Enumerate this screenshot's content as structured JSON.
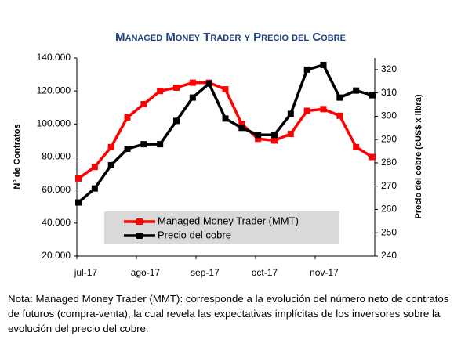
{
  "chart_data": {
    "type": "line",
    "title": "Managed Money Trader y Precio del Cobre",
    "ylabel": "N° de Contratos",
    "y2label": "Precio del cobre (cUS$ x libra)",
    "x_labels": [
      "jul-17",
      "ago-17",
      "sep-17",
      "oct-17",
      "nov-17"
    ],
    "series": [
      {
        "name": "Managed Money Trader (MMT)",
        "color": "#ff0000",
        "axis": "y",
        "values": [
          67000,
          74000,
          86000,
          104000,
          112000,
          120000,
          122000,
          125000,
          125000,
          121000,
          100000,
          91000,
          90000,
          94000,
          108000,
          109000,
          105000,
          86000,
          80000
        ]
      },
      {
        "name": "Precio del cobre",
        "color": "#000000",
        "axis": "y2",
        "values": [
          263,
          269,
          279,
          286,
          288,
          288,
          298,
          308,
          314,
          299,
          295,
          292,
          292,
          301,
          320,
          322,
          308,
          311,
          309
        ]
      }
    ],
    "ylim": [
      20000,
      140000
    ],
    "yticks": [
      {
        "value": 20000,
        "label": "20.000"
      },
      {
        "value": 40000,
        "label": "40.000"
      },
      {
        "value": 60000,
        "label": "60.000"
      },
      {
        "value": 80000,
        "label": "80.000"
      },
      {
        "value": 100000,
        "label": "100.000"
      },
      {
        "value": 120000,
        "label": "120.000"
      },
      {
        "value": 140000,
        "label": "140.000"
      }
    ],
    "y2lim": [
      240,
      325
    ],
    "y2ticks": [
      240,
      250,
      260,
      270,
      280,
      290,
      300,
      310,
      320
    ],
    "note": "Nota: Managed Money Trader (MMT): corresponde a la evolución del número neto de contratos de futuros (compra-venta), la cual revela las expectativas implícitas de los inversores sobre la evolución del precio del cobre."
  }
}
